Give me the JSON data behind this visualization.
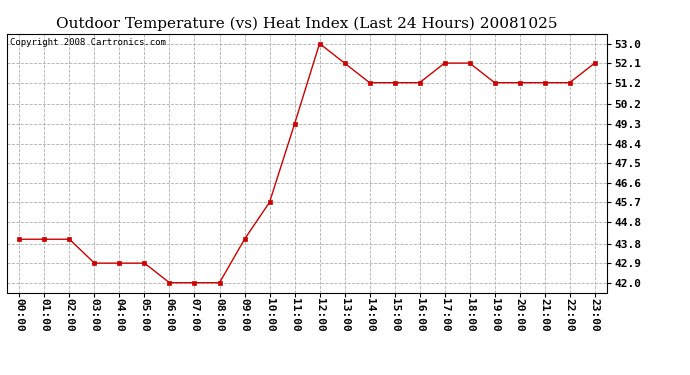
{
  "title": "Outdoor Temperature (vs) Heat Index (Last 24 Hours) 20081025",
  "copyright": "Copyright 2008 Cartronics.com",
  "x_labels": [
    "00:00",
    "01:00",
    "02:00",
    "03:00",
    "04:00",
    "05:00",
    "06:00",
    "07:00",
    "08:00",
    "09:00",
    "10:00",
    "11:00",
    "12:00",
    "13:00",
    "14:00",
    "15:00",
    "16:00",
    "17:00",
    "18:00",
    "19:00",
    "20:00",
    "21:00",
    "22:00",
    "23:00"
  ],
  "y_values": [
    44.0,
    44.0,
    44.0,
    42.9,
    42.9,
    42.9,
    42.0,
    42.0,
    42.0,
    44.0,
    45.7,
    49.3,
    53.0,
    52.1,
    51.2,
    51.2,
    51.2,
    52.1,
    52.1,
    51.2,
    51.2,
    51.2,
    51.2,
    52.1
  ],
  "y_ticks": [
    42.0,
    42.9,
    43.8,
    44.8,
    45.7,
    46.6,
    47.5,
    48.4,
    49.3,
    50.2,
    51.2,
    52.1,
    53.0
  ],
  "y_tick_labels": [
    "42.0",
    "42.9",
    "43.8",
    "44.8",
    "45.7",
    "46.6",
    "47.5",
    "48.4",
    "49.3",
    "50.2",
    "51.2",
    "52.1",
    "53.0"
  ],
  "ylim": [
    41.55,
    53.45
  ],
  "line_color": "#cc0000",
  "marker": "s",
  "marker_size": 2.5,
  "background_color": "#ffffff",
  "plot_bg_color": "#ffffff",
  "grid_color": "#b0b0b0",
  "title_fontsize": 11,
  "tick_fontsize": 8,
  "copyright_fontsize": 6.5
}
